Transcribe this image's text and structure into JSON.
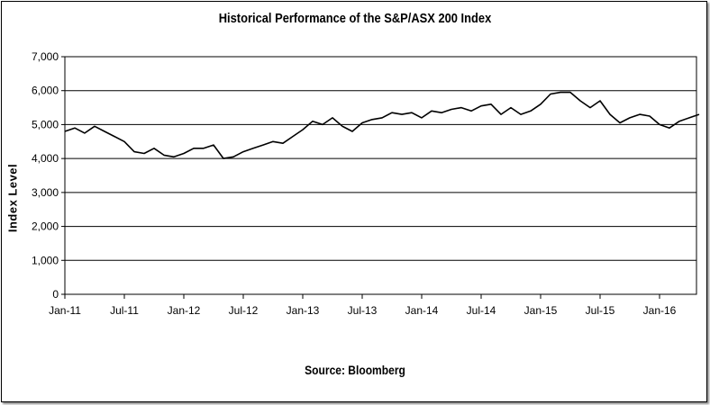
{
  "chart_data": {
    "type": "line",
    "title": "Historical Performance of the S&P/ASX 200 Index",
    "ylabel": "Index Level",
    "xlabel": "",
    "source": "Source: Bloomberg",
    "ylim": [
      0,
      7000
    ],
    "yticks": [
      "0",
      "1,000",
      "2,000",
      "3,000",
      "4,000",
      "5,000",
      "6,000",
      "7,000"
    ],
    "xticks": [
      "Jan-11",
      "Jul-11",
      "Jan-12",
      "Jul-12",
      "Jan-13",
      "Jul-13",
      "Jan-14",
      "Jul-14",
      "Jan-15",
      "Jul-15",
      "Jan-16"
    ],
    "xlim": [
      "2011-01",
      "2016-05"
    ],
    "grid": "horizontal",
    "series": [
      {
        "x": [
          "2011-01",
          "2011-02",
          "2011-03",
          "2011-04",
          "2011-05",
          "2011-06",
          "2011-07",
          "2011-08",
          "2011-09",
          "2011-10",
          "2011-11",
          "2011-12",
          "2012-01",
          "2012-02",
          "2012-03",
          "2012-04",
          "2012-05",
          "2012-06",
          "2012-07",
          "2012-08",
          "2012-09",
          "2012-10",
          "2012-11",
          "2012-12",
          "2013-01",
          "2013-02",
          "2013-03",
          "2013-04",
          "2013-05",
          "2013-06",
          "2013-07",
          "2013-08",
          "2013-09",
          "2013-10",
          "2013-11",
          "2013-12",
          "2014-01",
          "2014-02",
          "2014-03",
          "2014-04",
          "2014-05",
          "2014-06",
          "2014-07",
          "2014-08",
          "2014-09",
          "2014-10",
          "2014-11",
          "2014-12",
          "2015-01",
          "2015-02",
          "2015-03",
          "2015-04",
          "2015-05",
          "2015-06",
          "2015-07",
          "2015-08",
          "2015-09",
          "2015-10",
          "2015-11",
          "2015-12",
          "2016-01",
          "2016-02",
          "2016-03",
          "2016-04",
          "2016-05"
        ],
        "values": [
          4800,
          4900,
          4750,
          4950,
          4800,
          4650,
          4500,
          4200,
          4150,
          4300,
          4100,
          4050,
          4150,
          4300,
          4300,
          4400,
          4000,
          4050,
          4200,
          4300,
          4400,
          4500,
          4450,
          4650,
          4850,
          5100,
          5000,
          5200,
          4950,
          4800,
          5050,
          5150,
          5200,
          5350,
          5300,
          5350,
          5200,
          5400,
          5350,
          5450,
          5500,
          5400,
          5550,
          5600,
          5300,
          5500,
          5300,
          5400,
          5600,
          5900,
          5950,
          5950,
          5700,
          5500,
          5700,
          5300,
          5050,
          5200,
          5300,
          5250,
          5000,
          4900,
          5100,
          5200,
          5300
        ]
      }
    ]
  }
}
